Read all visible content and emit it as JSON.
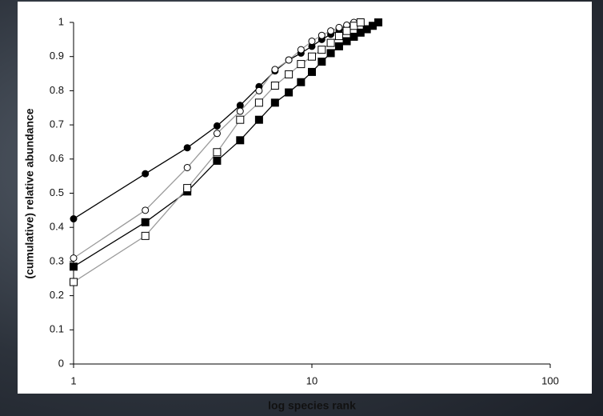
{
  "chart_data": {
    "type": "line",
    "x_label": "log species rank",
    "y_label": "(cumulative) relative abundance",
    "log_x": true,
    "xlim": [
      1,
      100
    ],
    "xticks": [
      1,
      10,
      100
    ],
    "ylim": [
      0,
      1
    ],
    "yticks": [
      0,
      0.1,
      0.2,
      0.3,
      0.4,
      0.5,
      0.6,
      0.7,
      0.8,
      0.9,
      1
    ],
    "series": [
      {
        "color": "#000000",
        "marker": "circle",
        "filled": true,
        "x": [
          1,
          2,
          3,
          4,
          5,
          6,
          7,
          8,
          9,
          10,
          11,
          12,
          13,
          14,
          15,
          16
        ],
        "values": [
          0.425,
          0.557,
          0.633,
          0.697,
          0.757,
          0.812,
          0.858,
          0.89,
          0.91,
          0.93,
          0.95,
          0.965,
          0.975,
          0.985,
          0.99,
          1.0
        ]
      },
      {
        "color": "#9a9a9a",
        "marker": "circle",
        "filled": false,
        "x": [
          1,
          2,
          3,
          4,
          5,
          6,
          7,
          8,
          9,
          10,
          11,
          12,
          13,
          14,
          15
        ],
        "values": [
          0.31,
          0.45,
          0.575,
          0.675,
          0.74,
          0.8,
          0.862,
          0.89,
          0.92,
          0.945,
          0.962,
          0.975,
          0.985,
          0.992,
          1.0
        ]
      },
      {
        "color": "#000000",
        "marker": "square",
        "filled": true,
        "x": [
          1,
          2,
          3,
          4,
          5,
          6,
          7,
          8,
          9,
          10,
          11,
          12,
          13,
          14,
          15,
          16,
          17,
          18,
          19
        ],
        "values": [
          0.285,
          0.415,
          0.505,
          0.595,
          0.655,
          0.715,
          0.765,
          0.795,
          0.825,
          0.855,
          0.885,
          0.91,
          0.93,
          0.945,
          0.958,
          0.97,
          0.98,
          0.99,
          1.0
        ]
      },
      {
        "color": "#9a9a9a",
        "marker": "square",
        "filled": false,
        "x": [
          1,
          2,
          3,
          4,
          5,
          6,
          7,
          8,
          9,
          10,
          11,
          12,
          13,
          14,
          15,
          16
        ],
        "values": [
          0.24,
          0.375,
          0.515,
          0.62,
          0.715,
          0.765,
          0.815,
          0.848,
          0.878,
          0.9,
          0.92,
          0.94,
          0.96,
          0.975,
          0.99,
          1.0
        ]
      }
    ]
  }
}
